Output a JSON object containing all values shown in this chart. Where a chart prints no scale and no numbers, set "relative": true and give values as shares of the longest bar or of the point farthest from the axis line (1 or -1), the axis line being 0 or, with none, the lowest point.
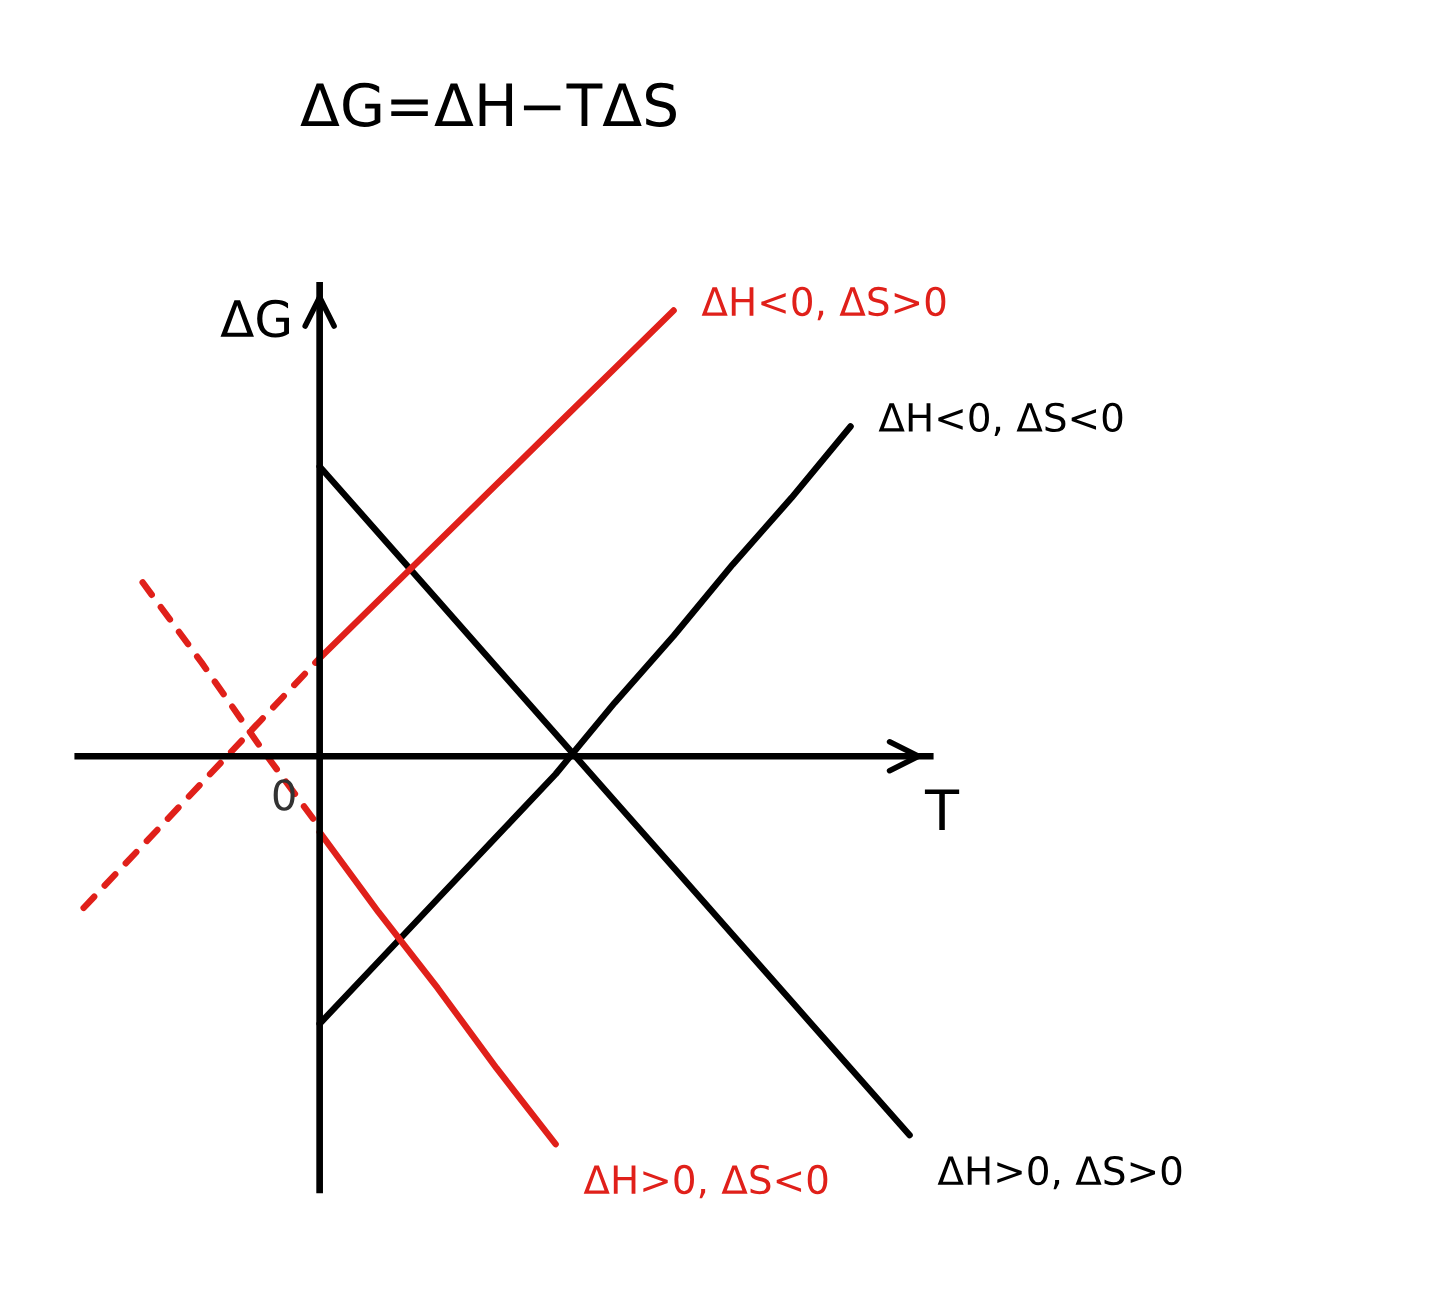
{
  "chart_data": {
    "type": "line",
    "title": "ΔG=ΔH−TΔS",
    "xlabel": "T",
    "ylabel": "ΔG",
    "relative": true,
    "annotations": [
      "0"
    ],
    "categories": [
      null,
      null,
      null,
      null,
      null,
      null,
      null,
      null,
      null,
      null,
      null,
      null,
      null,
      null,
      null
    ],
    "series": [
      {
        "name": "ΔH>0, ΔS>0",
        "color": "#000000",
        "line_style": "solid",
        "values": [
          null,
          null,
          null,
          null,
          0.65,
          0.5,
          0.35,
          0.2,
          0.05,
          -0.1,
          -0.25,
          -0.4,
          -0.55,
          -0.7,
          -0.85
        ]
      },
      {
        "name": "ΔH<0, ΔS<0",
        "color": "#000000",
        "line_style": "solid",
        "values": [
          null,
          null,
          null,
          null,
          -0.6,
          -0.46,
          -0.32,
          -0.18,
          -0.04,
          0.12,
          0.27,
          0.43,
          0.58,
          0.74,
          null
        ]
      },
      {
        "name": "ΔH<0, ΔS>0",
        "color": "#e0201a",
        "line_style": "solid",
        "values": [
          null,
          null,
          null,
          null,
          0.22,
          0.35,
          0.48,
          0.61,
          0.74,
          0.87,
          1.0,
          null,
          null,
          null,
          null
        ]
      },
      {
        "color": "#e0201a",
        "line_style": "dashed",
        "values": [
          -0.34,
          -0.2,
          -0.06,
          0.08,
          0.22,
          null,
          null,
          null,
          null,
          null,
          null,
          null,
          null,
          null,
          null
        ]
      },
      {
        "name": "ΔH>0, ΔS<0",
        "color": "#e0201a",
        "line_style": "solid",
        "values": [
          null,
          null,
          null,
          null,
          -0.17,
          -0.35,
          -0.52,
          -0.7,
          -0.87,
          null,
          null,
          null,
          null,
          null,
          null
        ]
      },
      {
        "color": "#e0201a",
        "line_style": "dashed",
        "values": [
          null,
          0.39,
          0.21,
          0.02,
          -0.16,
          null,
          null,
          null,
          null,
          null,
          null,
          null,
          null,
          null,
          null
        ]
      }
    ]
  }
}
